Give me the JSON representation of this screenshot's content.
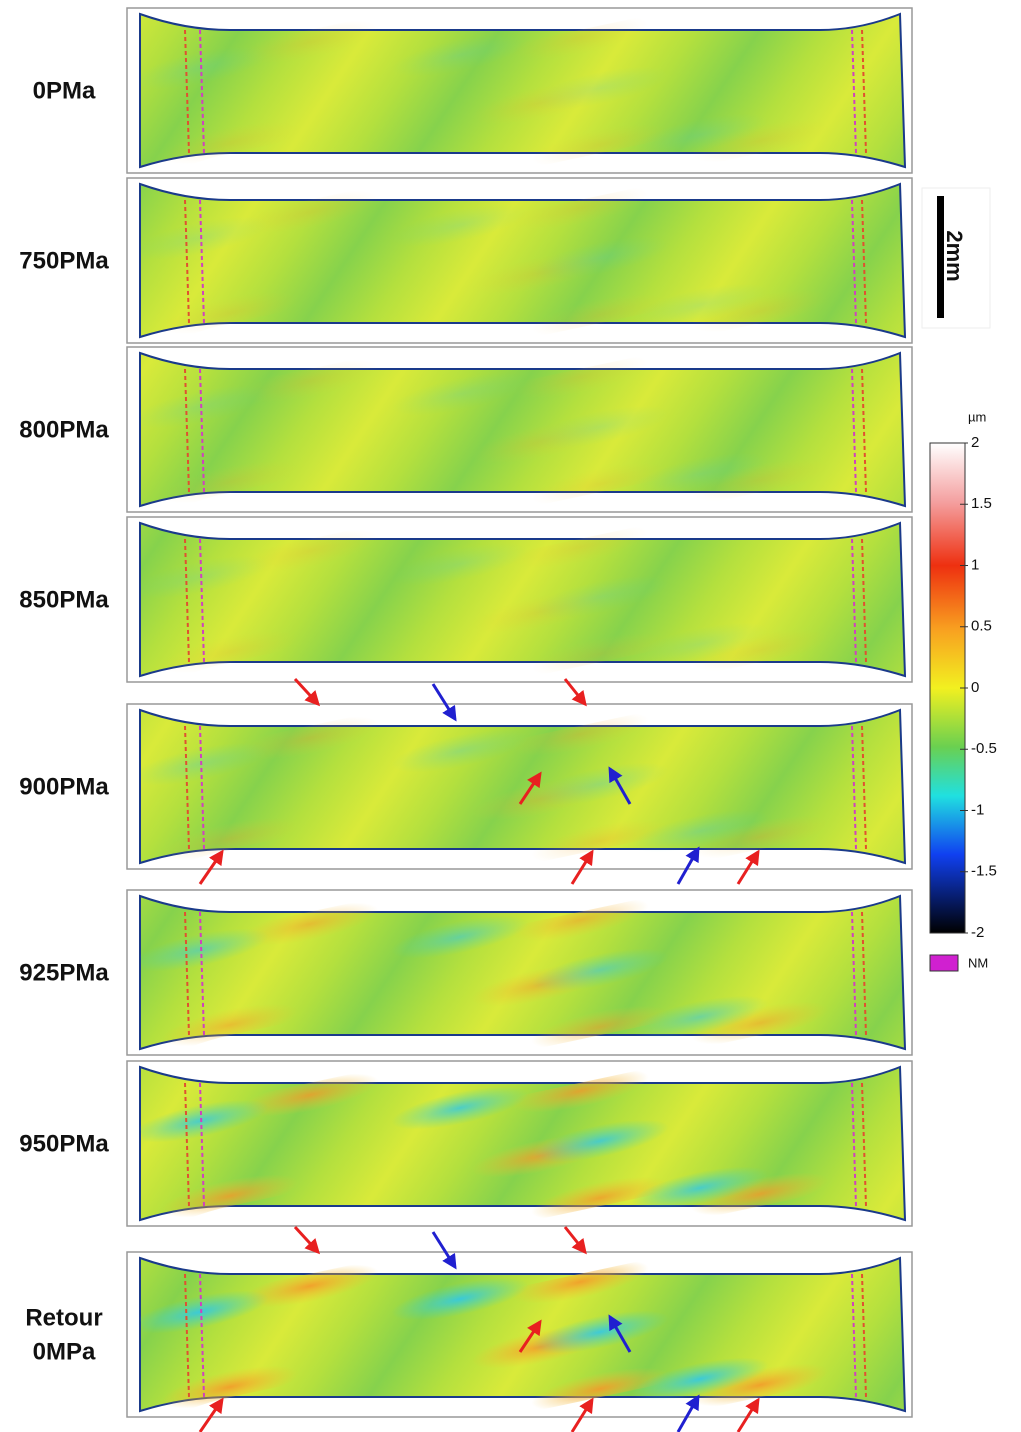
{
  "panels": [
    {
      "label_lines": [
        "0PMa"
      ]
    },
    {
      "label_lines": [
        "750PMa"
      ]
    },
    {
      "label_lines": [
        "800PMa"
      ]
    },
    {
      "label_lines": [
        "850PMa"
      ]
    },
    {
      "label_lines": [
        "900PMa"
      ]
    },
    {
      "label_lines": [
        "925PMa"
      ]
    },
    {
      "label_lines": [
        "950PMa"
      ]
    },
    {
      "label_lines": [
        "Retour",
        "0MPa"
      ]
    }
  ],
  "scale_bar": {
    "label": "2mm"
  },
  "colorbar": {
    "unit": "µm",
    "ticks": [
      2,
      1.5,
      1,
      0.5,
      0,
      -0.5,
      -1,
      -1.5,
      -2
    ]
  },
  "legend": {
    "label": "NM"
  }
}
